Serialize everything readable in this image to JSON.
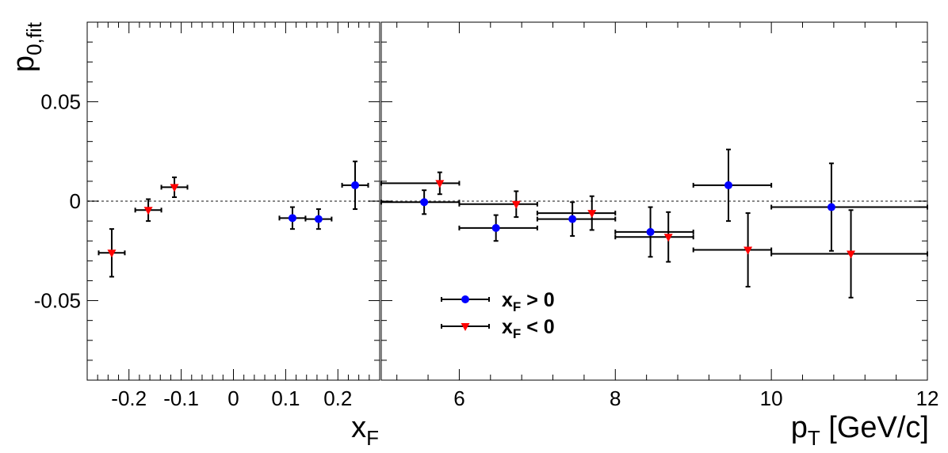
{
  "chart_data": [
    {
      "type": "scatter",
      "panel": "left",
      "xlabel": "x",
      "xlabel_sub": "F",
      "ylabel": "p",
      "ylabel_sub": "0,fit",
      "xlim": [
        -0.28,
        0.28
      ],
      "ylim": [
        -0.09,
        0.09
      ],
      "xticks": [
        -0.2,
        -0.1,
        0,
        0.1,
        0.2
      ],
      "xtick_labels": [
        "-0.2",
        "-0.1",
        "0",
        "0.1",
        "0.2"
      ],
      "yticks": [
        -0.05,
        0,
        0.05
      ],
      "ytick_labels": [
        "-0.05",
        "0",
        "0.05"
      ],
      "reference_line_y": 0,
      "series": [
        {
          "name": "x_F > 0",
          "marker": "circle",
          "color": "#0000ff",
          "points": [
            {
              "x": 0.113,
              "y": -0.0085,
              "xerr": 0.025,
              "yerr": 0.0055
            },
            {
              "x": 0.163,
              "y": -0.009,
              "xerr": 0.025,
              "yerr": 0.005
            },
            {
              "x": 0.233,
              "y": 0.008,
              "xerr": 0.025,
              "yerr": 0.012
            }
          ]
        },
        {
          "name": "x_F < 0",
          "marker": "triangle-down",
          "color": "#ff0000",
          "points": [
            {
              "x": -0.233,
              "y": -0.026,
              "xerr": 0.025,
              "yerr": 0.012
            },
            {
              "x": -0.163,
              "y": -0.0045,
              "xerr": 0.025,
              "yerr": 0.0055
            },
            {
              "x": -0.113,
              "y": 0.007,
              "xerr": 0.025,
              "yerr": 0.005
            }
          ]
        }
      ]
    },
    {
      "type": "scatter",
      "panel": "right",
      "xlabel": "p",
      "xlabel_sub": "T",
      "xlabel_suffix": " [GeV/c]",
      "xlim": [
        5,
        12
      ],
      "ylim": [
        -0.09,
        0.09
      ],
      "xticks": [
        6,
        8,
        10,
        12
      ],
      "xtick_labels": [
        "6",
        "8",
        "10",
        "12"
      ],
      "reference_line_y": 0,
      "series": [
        {
          "name": "x_F > 0",
          "marker": "circle",
          "color": "#0000ff",
          "points": [
            {
              "x": 5.55,
              "y": -0.0005,
              "xlo": 5.0,
              "xhi": 6.0,
              "yerr": 0.006
            },
            {
              "x": 6.47,
              "y": -0.0135,
              "xlo": 6.0,
              "xhi": 7.0,
              "yerr": 0.0065
            },
            {
              "x": 7.45,
              "y": -0.009,
              "xlo": 7.0,
              "xhi": 8.0,
              "yerr": 0.0085
            },
            {
              "x": 8.45,
              "y": -0.0155,
              "xlo": 8.0,
              "xhi": 9.0,
              "yerr": 0.0125
            },
            {
              "x": 9.45,
              "y": 0.008,
              "xlo": 9.0,
              "xhi": 10.0,
              "yerr": 0.018
            },
            {
              "x": 10.77,
              "y": -0.003,
              "xlo": 10.0,
              "xhi": 12.0,
              "yerr": 0.022
            }
          ]
        },
        {
          "name": "x_F < 0",
          "marker": "triangle-down",
          "color": "#ff0000",
          "points": [
            {
              "x": 5.75,
              "y": 0.009,
              "xlo": 5.0,
              "xhi": 6.0,
              "yerr": 0.0055
            },
            {
              "x": 6.73,
              "y": -0.0015,
              "xlo": 6.0,
              "xhi": 7.0,
              "yerr": 0.0065
            },
            {
              "x": 7.7,
              "y": -0.006,
              "xlo": 7.0,
              "xhi": 8.0,
              "yerr": 0.0085
            },
            {
              "x": 8.68,
              "y": -0.018,
              "xlo": 8.0,
              "xhi": 9.0,
              "yerr": 0.0125
            },
            {
              "x": 9.7,
              "y": -0.0245,
              "xlo": 9.0,
              "xhi": 10.0,
              "yerr": 0.0185
            },
            {
              "x": 11.02,
              "y": -0.0265,
              "xlo": 10.0,
              "xhi": 12.0,
              "yerr": 0.022
            }
          ]
        }
      ]
    }
  ],
  "legend": {
    "location": "lower-left of right panel",
    "entries": [
      {
        "label_main": "x",
        "label_sub": "F",
        "label_rest": " > 0",
        "marker": "circle",
        "color": "#0000ff"
      },
      {
        "label_main": "x",
        "label_sub": "F",
        "label_rest": " < 0",
        "marker": "triangle-down",
        "color": "#ff0000"
      }
    ]
  }
}
